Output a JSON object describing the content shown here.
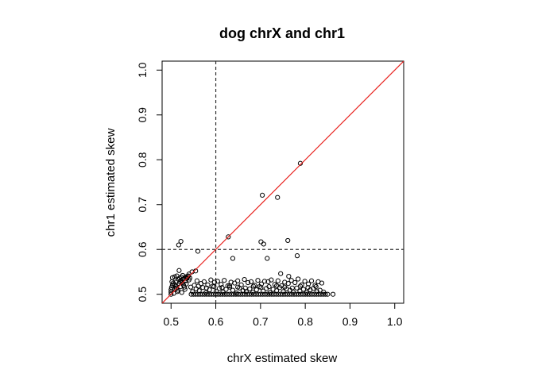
{
  "chart_data": {
    "type": "scatter",
    "title": "dog chrX and chr1",
    "xlabel": "chrX estimated skew",
    "ylabel": "chr1 estimated skew",
    "xlim": [
      0.48,
      1.02
    ],
    "ylim": [
      0.48,
      1.02
    ],
    "xticks": [
      "0.5",
      "0.6",
      "0.7",
      "0.8",
      "0.9",
      "1.0"
    ],
    "yticks": [
      "0.5",
      "0.6",
      "0.7",
      "0.8",
      "0.9",
      "1.0"
    ],
    "diagonal_line": {
      "from": [
        0.48,
        0.48
      ],
      "to": [
        1.02,
        1.02
      ],
      "color": "#e8211d"
    },
    "vline": {
      "x": 0.6,
      "style": "dashed",
      "color": "#333333"
    },
    "hline": {
      "y": 0.6,
      "style": "dashed",
      "color": "#333333"
    },
    "marker_color": "#000000",
    "series": [
      {
        "x": [
          0.789,
          0.704,
          0.738,
          0.628,
          0.701,
          0.707,
          0.761,
          0.522,
          0.517,
          0.56,
          0.638,
          0.715,
          0.782,
          0.518,
          0.555,
          0.54,
          0.745,
          0.763,
          0.5,
          0.5,
          0.5,
          0.501,
          0.503,
          0.505,
          0.507,
          0.51,
          0.512,
          0.515,
          0.518,
          0.52,
          0.522,
          0.525,
          0.528,
          0.53,
          0.532,
          0.535,
          0.537,
          0.54,
          0.502,
          0.506,
          0.509,
          0.511,
          0.514,
          0.517,
          0.521,
          0.524,
          0.527,
          0.531,
          0.534,
          0.545,
          0.55,
          0.555,
          0.56,
          0.565,
          0.57,
          0.575,
          0.58,
          0.585,
          0.59,
          0.595,
          0.6,
          0.605,
          0.61,
          0.615,
          0.62,
          0.625,
          0.63,
          0.635,
          0.64,
          0.645,
          0.65,
          0.655,
          0.66,
          0.665,
          0.67,
          0.675,
          0.68,
          0.685,
          0.69,
          0.695,
          0.7,
          0.705,
          0.71,
          0.715,
          0.72,
          0.725,
          0.73,
          0.735,
          0.74,
          0.745,
          0.75,
          0.755,
          0.76,
          0.765,
          0.77,
          0.775,
          0.78,
          0.785,
          0.79,
          0.795,
          0.8,
          0.805,
          0.81,
          0.815,
          0.82,
          0.825,
          0.83,
          0.835,
          0.84,
          0.845,
          0.85,
          0.862,
          0.548,
          0.556,
          0.563,
          0.571,
          0.578,
          0.586,
          0.593,
          0.601,
          0.608,
          0.616,
          0.623,
          0.631,
          0.638,
          0.646,
          0.653,
          0.661,
          0.668,
          0.676,
          0.683,
          0.691,
          0.698,
          0.706,
          0.713,
          0.721,
          0.728,
          0.736,
          0.743,
          0.751,
          0.758,
          0.766,
          0.773,
          0.781,
          0.788,
          0.796,
          0.803,
          0.811,
          0.818,
          0.826,
          0.833,
          0.841,
          0.552,
          0.567,
          0.582,
          0.597,
          0.612,
          0.627,
          0.642,
          0.657,
          0.672,
          0.687,
          0.702,
          0.717,
          0.732,
          0.747,
          0.762,
          0.777,
          0.792,
          0.807,
          0.822,
          0.837,
          0.558,
          0.574,
          0.589,
          0.604,
          0.619,
          0.634,
          0.649,
          0.664,
          0.679,
          0.694,
          0.709,
          0.724,
          0.739,
          0.754,
          0.769,
          0.784,
          0.799,
          0.814,
          0.829,
          0.544,
          0.561,
          0.579,
          0.596,
          0.614,
          0.631,
          0.649,
          0.666,
          0.684,
          0.701,
          0.719,
          0.736,
          0.754,
          0.771,
          0.789,
          0.806,
          0.824,
          0.503,
          0.508,
          0.513,
          0.519,
          0.523,
          0.526,
          0.529,
          0.533,
          0.536,
          0.539,
          0.542,
          0.547
        ],
        "y": [
          0.792,
          0.721,
          0.716,
          0.628,
          0.617,
          0.612,
          0.62,
          0.618,
          0.61,
          0.596,
          0.58,
          0.58,
          0.586,
          0.553,
          0.552,
          0.545,
          0.546,
          0.54,
          0.5,
          0.505,
          0.51,
          0.515,
          0.52,
          0.525,
          0.522,
          0.518,
          0.513,
          0.509,
          0.524,
          0.528,
          0.531,
          0.526,
          0.52,
          0.516,
          0.53,
          0.535,
          0.54,
          0.532,
          0.528,
          0.502,
          0.512,
          0.527,
          0.506,
          0.533,
          0.517,
          0.504,
          0.534,
          0.511,
          0.523,
          0.5,
          0.5,
          0.5,
          0.5,
          0.5,
          0.5,
          0.5,
          0.5,
          0.5,
          0.5,
          0.5,
          0.5,
          0.5,
          0.5,
          0.5,
          0.5,
          0.5,
          0.5,
          0.5,
          0.5,
          0.5,
          0.5,
          0.5,
          0.5,
          0.5,
          0.5,
          0.5,
          0.5,
          0.5,
          0.5,
          0.5,
          0.5,
          0.5,
          0.5,
          0.5,
          0.5,
          0.5,
          0.5,
          0.5,
          0.5,
          0.5,
          0.5,
          0.5,
          0.5,
          0.5,
          0.5,
          0.5,
          0.5,
          0.5,
          0.5,
          0.5,
          0.5,
          0.5,
          0.5,
          0.5,
          0.5,
          0.5,
          0.5,
          0.5,
          0.5,
          0.5,
          0.5,
          0.5,
          0.506,
          0.512,
          0.508,
          0.515,
          0.504,
          0.51,
          0.518,
          0.507,
          0.513,
          0.505,
          0.511,
          0.516,
          0.509,
          0.503,
          0.514,
          0.508,
          0.506,
          0.512,
          0.505,
          0.51,
          0.517,
          0.507,
          0.513,
          0.504,
          0.511,
          0.508,
          0.515,
          0.506,
          0.512,
          0.509,
          0.505,
          0.514,
          0.507,
          0.511,
          0.504,
          0.51,
          0.513,
          0.506,
          0.509,
          0.505,
          0.52,
          0.524,
          0.521,
          0.527,
          0.522,
          0.519,
          0.525,
          0.521,
          0.526,
          0.52,
          0.523,
          0.528,
          0.522,
          0.519,
          0.524,
          0.526,
          0.521,
          0.523,
          0.52,
          0.525,
          0.53,
          0.528,
          0.532,
          0.529,
          0.531,
          0.527,
          0.53,
          0.533,
          0.528,
          0.531,
          0.529,
          0.532,
          0.53,
          0.527,
          0.531,
          0.534,
          0.529,
          0.53,
          0.528,
          0.516,
          0.518,
          0.514,
          0.517,
          0.515,
          0.519,
          0.516,
          0.514,
          0.518,
          0.515,
          0.517,
          0.519,
          0.516,
          0.514,
          0.518,
          0.515,
          0.517,
          0.537,
          0.539,
          0.541,
          0.536,
          0.538,
          0.542,
          0.535,
          0.539,
          0.537,
          0.541,
          0.536,
          0.55
        ]
      }
    ]
  }
}
